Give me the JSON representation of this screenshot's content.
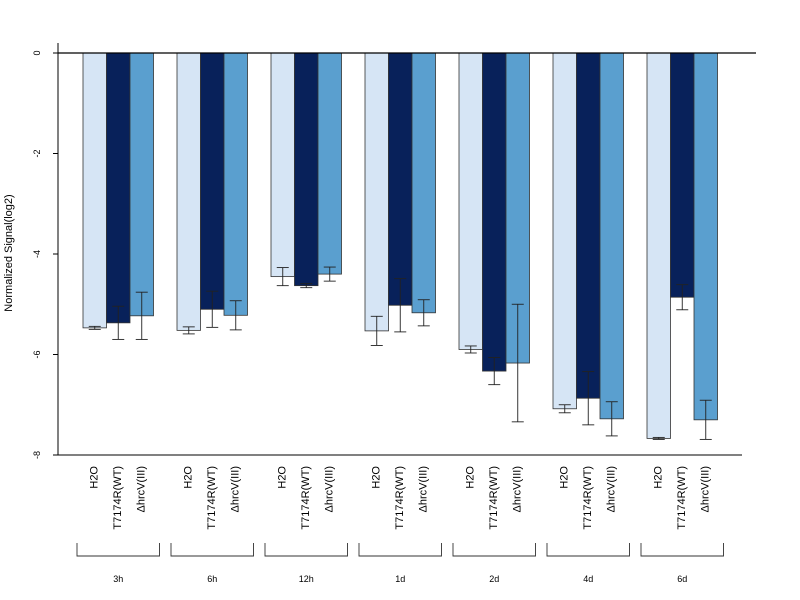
{
  "chart_data": {
    "type": "bar",
    "title": "",
    "xlabel": "",
    "ylabel": "Normalized Signal(log2)",
    "ylim": [
      -8,
      0
    ],
    "yticks": [
      0,
      -2,
      -4,
      -6,
      -8
    ],
    "grid": false,
    "legend": "none",
    "groups": [
      "3h",
      "6h",
      "12h",
      "1d",
      "2d",
      "4d",
      "6d"
    ],
    "bar_labels": [
      "H2O",
      "T7174R(WT)",
      "ΔhrcV(III)"
    ],
    "series": [
      {
        "name": "H2O",
        "color": "#d6e5f5",
        "values": [
          -5.47,
          -5.52,
          -4.45,
          -5.53,
          -5.9,
          -7.08,
          -7.67
        ],
        "error": [
          0.03,
          0.07,
          0.18,
          0.29,
          0.07,
          0.08,
          0.02
        ]
      },
      {
        "name": "T7174R(WT)",
        "color": "#08215a",
        "values": [
          -5.37,
          -5.1,
          -4.63,
          -5.02,
          -6.33,
          -6.87,
          -4.86
        ],
        "error": [
          0.33,
          0.36,
          0.04,
          0.53,
          0.27,
          0.53,
          0.25
        ]
      },
      {
        "name": "ΔhrcV(III)",
        "color": "#5a9fcf",
        "values": [
          -5.23,
          -5.22,
          -4.4,
          -5.17,
          -6.17,
          -7.28,
          -7.3
        ],
        "error": [
          0.47,
          0.29,
          0.14,
          0.26,
          1.17,
          0.34,
          0.39
        ]
      }
    ]
  }
}
